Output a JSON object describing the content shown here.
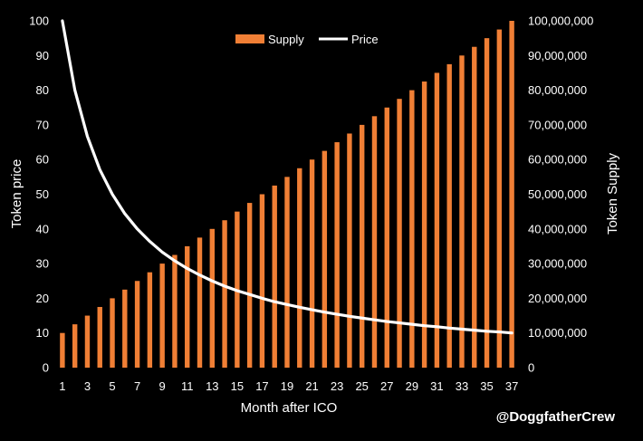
{
  "chart_data": {
    "type": "bar",
    "categories": [
      1,
      2,
      3,
      4,
      5,
      6,
      7,
      8,
      9,
      10,
      11,
      12,
      13,
      14,
      15,
      16,
      17,
      18,
      19,
      20,
      21,
      22,
      23,
      24,
      25,
      26,
      27,
      28,
      29,
      30,
      31,
      32,
      33,
      34,
      35,
      36,
      37
    ],
    "x_tick_labels": [
      "1",
      "3",
      "5",
      "7",
      "9",
      "11",
      "13",
      "15",
      "17",
      "19",
      "21",
      "23",
      "25",
      "27",
      "29",
      "31",
      "33",
      "35",
      "37"
    ],
    "series": [
      {
        "name": "Supply",
        "type": "bar",
        "axis": "right",
        "color": "#f07f35",
        "values": [
          10000000,
          12500000,
          15000000,
          17500000,
          20000000,
          22500000,
          25000000,
          27500000,
          30000000,
          32500000,
          35000000,
          37500000,
          40000000,
          42500000,
          45000000,
          47500000,
          50000000,
          52500000,
          55000000,
          57500000,
          60000000,
          62500000,
          65000000,
          67500000,
          70000000,
          72500000,
          75000000,
          77500000,
          80000000,
          82500000,
          85000000,
          87500000,
          90000000,
          92500000,
          95000000,
          97500000,
          100000000
        ]
      },
      {
        "name": "Price",
        "type": "line",
        "axis": "left",
        "color": "#ffffff",
        "values": [
          100,
          80,
          66.7,
          57.1,
          50,
          44.4,
          40,
          36.4,
          33.3,
          30.8,
          28.6,
          26.7,
          25,
          23.5,
          22.2,
          21.1,
          20,
          19,
          18.2,
          17.4,
          16.7,
          16,
          15.4,
          14.8,
          14.3,
          13.8,
          13.3,
          12.9,
          12.5,
          12.1,
          11.8,
          11.4,
          11.1,
          10.8,
          10.5,
          10.3,
          10
        ]
      }
    ],
    "ylabel": "Token price",
    "y2label": "Token Supply",
    "xlabel": "Month after ICO",
    "ylim": [
      0,
      100
    ],
    "y_ticks": [
      0,
      10,
      20,
      30,
      40,
      50,
      60,
      70,
      80,
      90,
      100
    ],
    "y_tick_labels": [
      "0",
      "10",
      "20",
      "30",
      "40",
      "50",
      "60",
      "70",
      "80",
      "90",
      "100"
    ],
    "y2lim": [
      0,
      100000000
    ],
    "y2_ticks": [
      0,
      10000000,
      20000000,
      30000000,
      40000000,
      50000000,
      60000000,
      70000000,
      80000000,
      90000000,
      100000000
    ],
    "y2_tick_labels": [
      "0",
      "10,000,000",
      "20,000,000",
      "30,000,000",
      "40,000,000",
      "50,000,000",
      "60,000,000",
      "70,000,000",
      "80,000,000",
      "90,000,000",
      "100,000,000"
    ],
    "legend": {
      "position": "top-center",
      "entries": [
        "Supply",
        "Price"
      ]
    },
    "grid": false
  },
  "credit": "@DoggfatherCrew",
  "colors": {
    "background": "#000000",
    "bar": "#f07f35",
    "line": "#ffffff",
    "text": "#ffffff"
  }
}
